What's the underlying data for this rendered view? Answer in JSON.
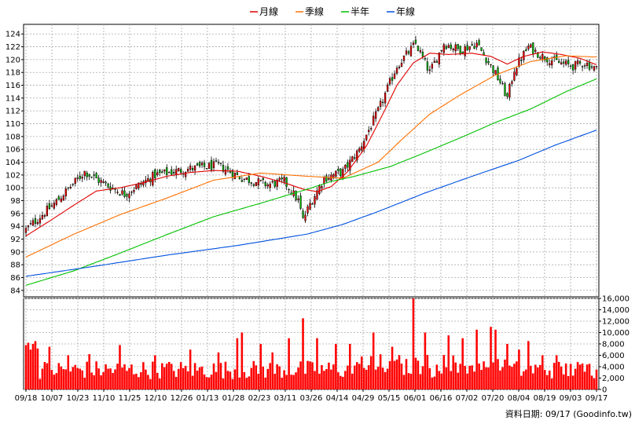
{
  "legend": {
    "items": [
      {
        "label": "月線",
        "color": "#e00000"
      },
      {
        "label": "季線",
        "color": "#ff7000"
      },
      {
        "label": "半年",
        "color": "#00c000"
      },
      {
        "label": "年線",
        "color": "#0050e0"
      }
    ]
  },
  "source_note": "資料日期: 09/17  (Goodinfo.tw)",
  "chart_data": [
    {
      "type": "candlestick",
      "ylim": [
        83,
        125.5
      ],
      "yticks": [
        84,
        86,
        88,
        90,
        92,
        94,
        96,
        98,
        100,
        102,
        104,
        106,
        108,
        110,
        112,
        114,
        116,
        118,
        120,
        122,
        124
      ],
      "x_labels": [
        "09/18",
        "10/07",
        "10/23",
        "11/10",
        "11/25",
        "12/10",
        "12/26",
        "01/13",
        "01/28",
        "02/23",
        "03/11",
        "03/26",
        "04/14",
        "04/29",
        "05/15",
        "06/01",
        "06/16",
        "07/02",
        "07/20",
        "08/04",
        "08/19",
        "09/03",
        "09/17"
      ],
      "days": 244,
      "keypoints_close": [
        [
          0,
          93.5
        ],
        [
          12,
          97.5
        ],
        [
          25,
          102.5
        ],
        [
          34,
          100.5
        ],
        [
          42,
          99
        ],
        [
          55,
          102
        ],
        [
          70,
          103
        ],
        [
          82,
          103.5
        ],
        [
          92,
          101.5
        ],
        [
          103,
          100.5
        ],
        [
          110,
          101
        ],
        [
          116,
          98
        ],
        [
          118,
          95
        ],
        [
          121,
          97.5
        ],
        [
          127,
          101.5
        ],
        [
          135,
          102.5
        ],
        [
          142,
          106
        ],
        [
          150,
          112
        ],
        [
          158,
          119
        ],
        [
          166,
          122.5
        ],
        [
          172,
          118
        ],
        [
          178,
          122.5
        ],
        [
          185,
          121.5
        ],
        [
          192,
          122.5
        ],
        [
          198,
          119
        ],
        [
          202,
          116.5
        ],
        [
          205,
          114
        ],
        [
          208,
          118.5
        ],
        [
          214,
          122
        ],
        [
          220,
          120.5
        ],
        [
          227,
          119.5
        ],
        [
          233,
          119
        ],
        [
          238,
          119.5
        ],
        [
          243,
          118.5
        ]
      ],
      "ma_series": [
        {
          "name": "月線",
          "color": "#e00000",
          "points": [
            [
              0,
              92.5
            ],
            [
              10,
              94.8
            ],
            [
              20,
              97.2
            ],
            [
              30,
              99.5
            ],
            [
              40,
              100
            ],
            [
              50,
              100.8
            ],
            [
              60,
              101.8
            ],
            [
              70,
              102.4
            ],
            [
              80,
              102.7
            ],
            [
              90,
              102.6
            ],
            [
              100,
              101.8
            ],
            [
              110,
              100.8
            ],
            [
              118,
              99.8
            ],
            [
              124,
              99.4
            ],
            [
              130,
              100.2
            ],
            [
              137,
              102.5
            ],
            [
              145,
              106.5
            ],
            [
              152,
              111.5
            ],
            [
              158,
              116
            ],
            [
              165,
              119.5
            ],
            [
              172,
              121
            ],
            [
              180,
              120.8
            ],
            [
              190,
              121
            ],
            [
              198,
              120.5
            ],
            [
              205,
              119.3
            ],
            [
              212,
              120.5
            ],
            [
              220,
              121.2
            ],
            [
              228,
              120.8
            ],
            [
              236,
              120.2
            ],
            [
              243,
              119.2
            ]
          ]
        },
        {
          "name": "季線",
          "color": "#ff7000",
          "points": [
            [
              0,
              89.2
            ],
            [
              20,
              92.7
            ],
            [
              40,
              95.8
            ],
            [
              60,
              98.4
            ],
            [
              80,
              101.2
            ],
            [
              100,
              102.3
            ],
            [
              120,
              101.8
            ],
            [
              135,
              101.5
            ],
            [
              150,
              104
            ],
            [
              160,
              107.5
            ],
            [
              172,
              111.5
            ],
            [
              185,
              114.5
            ],
            [
              200,
              117.6
            ],
            [
              215,
              119.7
            ],
            [
              230,
              120.6
            ],
            [
              243,
              120.4
            ]
          ]
        },
        {
          "name": "半年",
          "color": "#00c000",
          "points": [
            [
              0,
              84.8
            ],
            [
              20,
              87
            ],
            [
              40,
              89.8
            ],
            [
              60,
              92.7
            ],
            [
              80,
              95.5
            ],
            [
              100,
              97.6
            ],
            [
              120,
              99.8
            ],
            [
              130,
              101
            ],
            [
              140,
              101.8
            ],
            [
              155,
              103.3
            ],
            [
              170,
              105.5
            ],
            [
              185,
              107.8
            ],
            [
              200,
              110.2
            ],
            [
              215,
              112.3
            ],
            [
              230,
              115
            ],
            [
              243,
              117
            ]
          ]
        },
        {
          "name": "年線",
          "color": "#0050e0",
          "points": [
            [
              0,
              86.2
            ],
            [
              30,
              87.8
            ],
            [
              60,
              89.5
            ],
            [
              90,
              91
            ],
            [
              120,
              92.8
            ],
            [
              135,
              94.3
            ],
            [
              150,
              96.3
            ],
            [
              170,
              99.2
            ],
            [
              190,
              101.8
            ],
            [
              210,
              104.3
            ],
            [
              225,
              106.6
            ],
            [
              243,
              109
            ]
          ]
        }
      ]
    },
    {
      "type": "bar",
      "ylim": [
        0,
        16000
      ],
      "yticks": [
        0,
        2000,
        4000,
        6000,
        8000,
        10000,
        12000,
        14000,
        16000
      ],
      "ytick_labels": [
        "0",
        "2,000",
        "4,000",
        "6,000",
        "8,000",
        "10,000",
        "12,000",
        "14,000",
        "16,000"
      ],
      "color": "#ff0000",
      "base": 3300,
      "spikes": [
        [
          0,
          7800
        ],
        [
          1,
          8200
        ],
        [
          2,
          7000
        ],
        [
          3,
          8000
        ],
        [
          4,
          8500
        ],
        [
          5,
          7200
        ],
        [
          10,
          7500
        ],
        [
          18,
          6000
        ],
        [
          27,
          6200
        ],
        [
          40,
          7800
        ],
        [
          55,
          6000
        ],
        [
          62,
          4500
        ],
        [
          70,
          7000
        ],
        [
          82,
          6500
        ],
        [
          90,
          9000
        ],
        [
          92,
          10000
        ],
        [
          100,
          8000
        ],
        [
          105,
          6500
        ],
        [
          112,
          9000
        ],
        [
          118,
          12500
        ],
        [
          124,
          9000
        ],
        [
          132,
          8000
        ],
        [
          138,
          8000
        ],
        [
          148,
          10000
        ],
        [
          156,
          7500
        ],
        [
          165,
          16000
        ],
        [
          170,
          10000
        ],
        [
          180,
          9500
        ],
        [
          186,
          9000
        ],
        [
          192,
          10500
        ],
        [
          198,
          11000
        ],
        [
          200,
          10500
        ],
        [
          205,
          8000
        ],
        [
          210,
          7000
        ],
        [
          214,
          8500
        ],
        [
          220,
          6000
        ],
        [
          226,
          6000
        ],
        [
          232,
          4500
        ],
        [
          240,
          4500
        ],
        [
          243,
          3500
        ]
      ]
    }
  ]
}
